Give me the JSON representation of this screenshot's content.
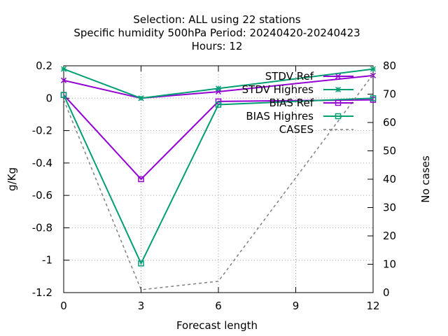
{
  "chart_data": {
    "type": "line",
    "title_lines": [
      "Selection: ALL using    22 stations",
      "Specific humidity 500hPa   Period: 20240420-20240423",
      "Hours:  12"
    ],
    "xlabel": "Forecast length",
    "ylabel": "g/Kg",
    "y2label": "No cases",
    "x": [
      0,
      3,
      6,
      12
    ],
    "xlim": [
      0,
      12
    ],
    "ylim": [
      -1.2,
      0.2
    ],
    "y2lim": [
      0,
      80
    ],
    "xticks": [
      "0",
      "3",
      "6",
      "9",
      "12"
    ],
    "yticks": [
      "0.2",
      "0",
      "-0.2",
      "-0.4",
      "-0.6",
      "-0.8",
      "-1",
      "-1.2"
    ],
    "y2ticks": [
      "80",
      "70",
      "60",
      "50",
      "40",
      "30",
      "20",
      "10",
      "0"
    ],
    "grid": true,
    "legend_position": "top-right",
    "series": [
      {
        "name": "STDV Ref",
        "axis": "y1",
        "color": "#9400d3",
        "marker": "cross",
        "dash": "",
        "values": [
          0.11,
          0.0,
          0.04,
          0.14
        ]
      },
      {
        "name": "STDV Highres",
        "axis": "y1",
        "color": "#009e73",
        "marker": "star",
        "dash": "",
        "values": [
          0.18,
          0.0,
          0.06,
          0.18
        ]
      },
      {
        "name": "BIAS Ref",
        "axis": "y1",
        "color": "#9400d3",
        "marker": "square",
        "dash": "",
        "values": [
          0.02,
          -0.5,
          -0.02,
          -0.01
        ]
      },
      {
        "name": "BIAS Highres",
        "axis": "y1",
        "color": "#009e73",
        "marker": "square",
        "dash": "",
        "values": [
          0.02,
          -1.02,
          -0.04,
          0.0
        ]
      },
      {
        "name": "CASES",
        "axis": "y2",
        "color": "#808080",
        "marker": "none",
        "dash": "4,4",
        "values": [
          68,
          1,
          4,
          77
        ]
      }
    ]
  }
}
